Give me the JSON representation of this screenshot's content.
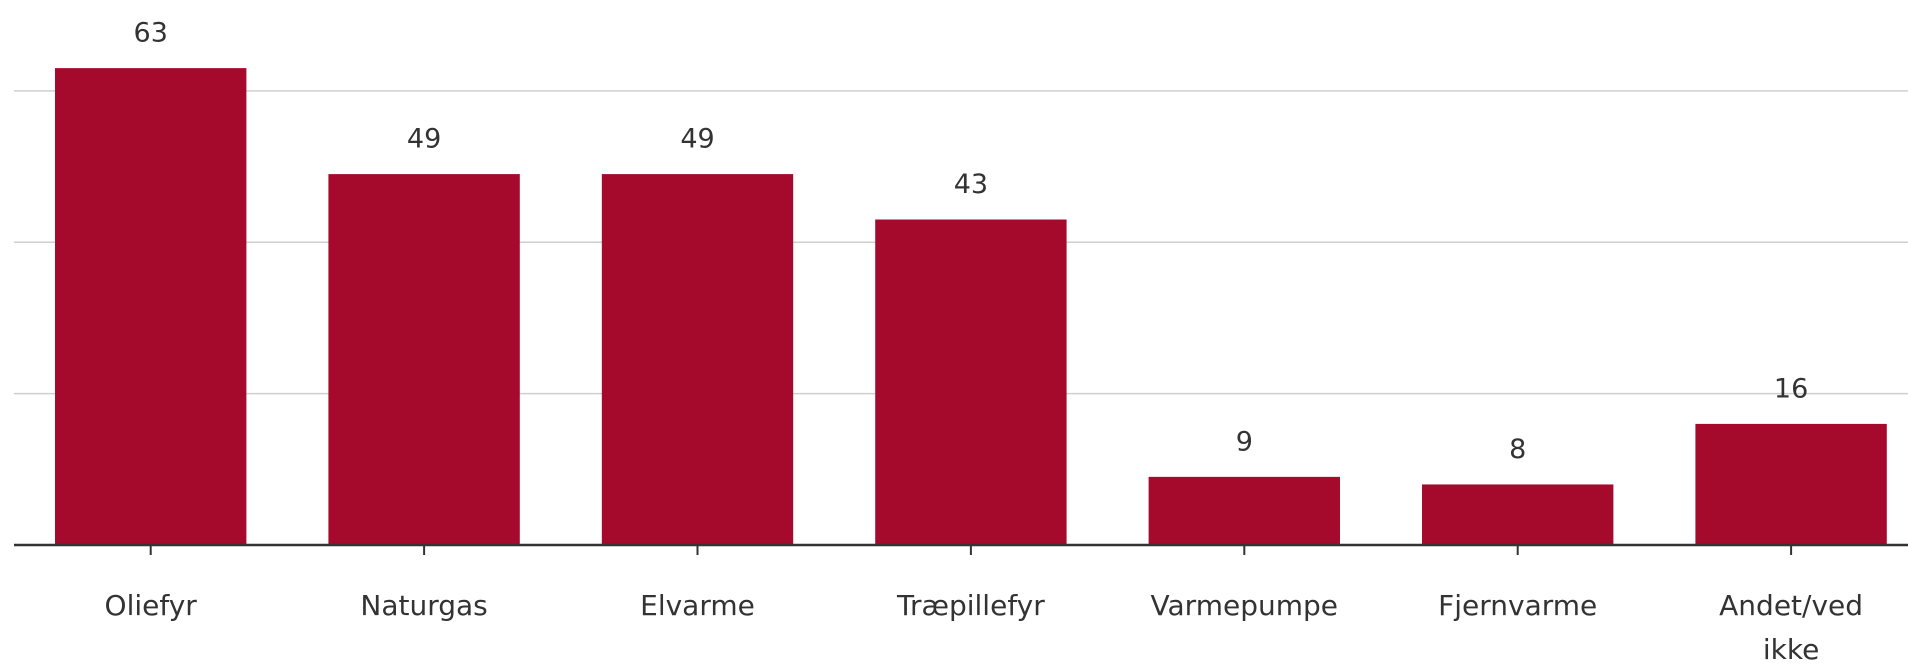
{
  "chart_data": {
    "type": "bar",
    "categories": [
      "Oliefyr",
      "Naturgas",
      "Elvarme",
      "Træpillefyr",
      "Varmepumpe",
      "Fjernvarme",
      "Andet/ved ikke"
    ],
    "values": [
      63,
      49,
      49,
      43,
      9,
      8,
      16
    ],
    "color": "#a50a2d",
    "ylim": [
      0,
      72
    ],
    "yticks": [
      0,
      20,
      40,
      60
    ],
    "grid": true
  }
}
